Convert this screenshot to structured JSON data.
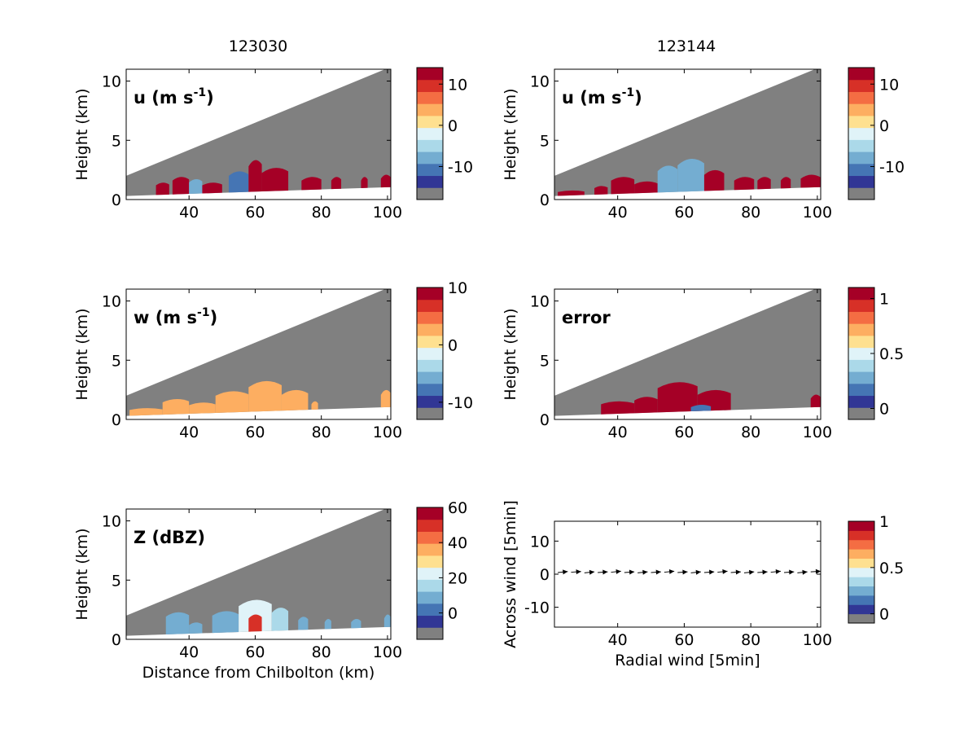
{
  "figure": {
    "column_titles": [
      "123030",
      "123144"
    ],
    "shared_xlabel": "Distance from Chilbolton (km)",
    "shared_ylabel": "Height (km)"
  },
  "palette": {
    "colormap": [
      "#313695",
      "#4575b4",
      "#74add1",
      "#abd9e9",
      "#e0f3f8",
      "#fee090",
      "#fdae61",
      "#f46d43",
      "#d73027",
      "#a50026"
    ],
    "background_grey": "#808080"
  },
  "chart_data": [
    {
      "id": "u-123030",
      "type": "heatmap",
      "panel_label": "u (m s",
      "panel_label_sup": "-1",
      "panel_label_tail": ")",
      "xlim": [
        21,
        101
      ],
      "ylim": [
        0,
        11
      ],
      "xticks": [
        40,
        60,
        80,
        100
      ],
      "yticks": [
        0,
        5,
        10
      ],
      "xlabel": "",
      "ylabel": "Height (km)",
      "colorbar": {
        "vmin": -18,
        "vmax": 14,
        "ticks": [
          10,
          0,
          -10
        ],
        "bottom_grey": true
      },
      "echo_regions": [
        {
          "x": [
            30,
            34
          ],
          "top": 1.5,
          "value": 12
        },
        {
          "x": [
            35,
            40
          ],
          "top": 2.0,
          "value": 12
        },
        {
          "x": [
            40,
            44
          ],
          "top": 1.8,
          "value": -11
        },
        {
          "x": [
            44,
            50
          ],
          "top": 1.5,
          "value": 12
        },
        {
          "x": [
            52,
            58
          ],
          "top": 2.5,
          "value": -12
        },
        {
          "x": [
            58,
            62
          ],
          "top": 3.5,
          "value": 12
        },
        {
          "x": [
            62,
            70
          ],
          "top": 2.8,
          "value": 12
        },
        {
          "x": [
            74,
            80
          ],
          "top": 2.0,
          "value": 12
        },
        {
          "x": [
            83,
            86
          ],
          "top": 2.0,
          "value": 12
        },
        {
          "x": [
            92,
            94
          ],
          "top": 2.0,
          "value": 12
        },
        {
          "x": [
            98,
            101
          ],
          "top": 2.2,
          "value": 12
        }
      ]
    },
    {
      "id": "u-123144",
      "type": "heatmap",
      "panel_label": "u (m s",
      "panel_label_sup": "-1",
      "panel_label_tail": ")",
      "xlim": [
        21,
        101
      ],
      "ylim": [
        0,
        11
      ],
      "xticks": [
        40,
        60,
        80,
        100
      ],
      "yticks": [
        0,
        5,
        10
      ],
      "xlabel": "",
      "ylabel": "Height (km)",
      "colorbar": {
        "vmin": -18,
        "vmax": 14,
        "ticks": [
          10,
          0,
          -10
        ],
        "bottom_grey": true
      },
      "echo_regions": [
        {
          "x": [
            22,
            30
          ],
          "top": 0.8,
          "value": 12
        },
        {
          "x": [
            33,
            37
          ],
          "top": 1.2,
          "value": 12
        },
        {
          "x": [
            38,
            45
          ],
          "top": 2.0,
          "value": 12
        },
        {
          "x": [
            45,
            52
          ],
          "top": 1.6,
          "value": 12
        },
        {
          "x": [
            52,
            58
          ],
          "top": 3.0,
          "value": -11
        },
        {
          "x": [
            58,
            66
          ],
          "top": 3.6,
          "value": -9
        },
        {
          "x": [
            66,
            72
          ],
          "top": 2.6,
          "value": 12
        },
        {
          "x": [
            75,
            81
          ],
          "top": 2.0,
          "value": 12
        },
        {
          "x": [
            82,
            86
          ],
          "top": 2.0,
          "value": 12
        },
        {
          "x": [
            89,
            92
          ],
          "top": 2.0,
          "value": 12
        },
        {
          "x": [
            95,
            101
          ],
          "top": 2.2,
          "value": 12
        }
      ]
    },
    {
      "id": "w-123030",
      "type": "heatmap",
      "panel_label": "w (m s",
      "panel_label_sup": "-1",
      "panel_label_tail": ")",
      "xlim": [
        21,
        101
      ],
      "ylim": [
        0,
        11
      ],
      "xticks": [
        40,
        60,
        80,
        100
      ],
      "yticks": [
        0,
        5,
        10
      ],
      "xlabel": "",
      "ylabel": "Height (km)",
      "colorbar": {
        "vmin": -13,
        "vmax": 10,
        "ticks": [
          10,
          0,
          -10
        ],
        "bottom_grey": true
      },
      "echo_regions": [
        {
          "x": [
            22,
            32
          ],
          "top": 1.0,
          "value": 2
        },
        {
          "x": [
            32,
            40
          ],
          "top": 1.8,
          "value": 2
        },
        {
          "x": [
            40,
            48
          ],
          "top": 1.5,
          "value": 1
        },
        {
          "x": [
            48,
            58
          ],
          "top": 2.5,
          "value": 2
        },
        {
          "x": [
            58,
            68
          ],
          "top": 3.4,
          "value": 2
        },
        {
          "x": [
            68,
            76
          ],
          "top": 2.6,
          "value": 1
        },
        {
          "x": [
            77,
            79
          ],
          "top": 1.6,
          "value": 1
        },
        {
          "x": [
            98,
            101
          ],
          "top": 2.6,
          "value": 2
        }
      ]
    },
    {
      "id": "error-123144",
      "type": "heatmap",
      "panel_label": "error",
      "panel_label_sup": "",
      "panel_label_tail": "",
      "xlim": [
        21,
        101
      ],
      "ylim": [
        0,
        11
      ],
      "xticks": [
        40,
        60,
        80,
        100
      ],
      "yticks": [
        0,
        5,
        10
      ],
      "xlabel": "",
      "ylabel": "Height (km)",
      "colorbar": {
        "vmin": -0.1,
        "vmax": 1.1,
        "ticks": [
          1,
          0.5,
          0
        ],
        "bottom_grey": true
      },
      "echo_regions": [
        {
          "x": [
            35,
            45
          ],
          "top": 1.6,
          "value": 1.05
        },
        {
          "x": [
            45,
            52
          ],
          "top": 2.0,
          "value": 1.05
        },
        {
          "x": [
            52,
            64
          ],
          "top": 3.3,
          "value": 1.05
        },
        {
          "x": [
            64,
            74
          ],
          "top": 2.6,
          "value": 1.05
        },
        {
          "x": [
            62,
            68
          ],
          "top": 1.3,
          "value": 0.1
        },
        {
          "x": [
            98,
            101
          ],
          "top": 2.2,
          "value": 1.05
        }
      ]
    },
    {
      "id": "Z-123030",
      "type": "heatmap",
      "panel_label": "Z (dBZ)",
      "panel_label_sup": "",
      "panel_label_tail": "",
      "xlim": [
        21,
        101
      ],
      "ylim": [
        0,
        11
      ],
      "xticks": [
        40,
        60,
        80,
        100
      ],
      "yticks": [
        0,
        5,
        10
      ],
      "xlabel": "Distance from Chilbolton (km)",
      "ylabel": "Height (km)",
      "colorbar": {
        "vmin": -15,
        "vmax": 60,
        "ticks": [
          60,
          40,
          20,
          0
        ],
        "bottom_grey": true
      },
      "echo_regions": [
        {
          "x": [
            33,
            40
          ],
          "top": 2.4,
          "value": 0
        },
        {
          "x": [
            40,
            44
          ],
          "top": 1.5,
          "value": 5
        },
        {
          "x": [
            47,
            55
          ],
          "top": 2.5,
          "value": 5
        },
        {
          "x": [
            55,
            65
          ],
          "top": 3.5,
          "value": 20
        },
        {
          "x": [
            58,
            62
          ],
          "top": 2.2,
          "value": 45
        },
        {
          "x": [
            65,
            70
          ],
          "top": 2.8,
          "value": 10
        },
        {
          "x": [
            73,
            76
          ],
          "top": 2.0,
          "value": 0
        },
        {
          "x": [
            81,
            83
          ],
          "top": 1.8,
          "value": 0
        },
        {
          "x": [
            89,
            92
          ],
          "top": 1.8,
          "value": 0
        },
        {
          "x": [
            99,
            101
          ],
          "top": 2.2,
          "value": 0
        }
      ]
    },
    {
      "id": "wind-vectors",
      "type": "scatter",
      "xlim": [
        21,
        101
      ],
      "ylim": [
        -16,
        16
      ],
      "xticks": [
        40,
        60,
        80,
        100
      ],
      "yticks": [
        10,
        0,
        -10
      ],
      "xlabel": "Radial wind [5min]",
      "ylabel": "Across wind [5min]",
      "colorbar": {
        "vmin": -0.1,
        "vmax": 1.0,
        "ticks": [
          1,
          0.5,
          0
        ],
        "bottom_grey": true
      },
      "arrows": {
        "x": [
          22,
          26,
          30,
          34,
          38,
          42,
          46,
          50,
          54,
          58,
          62,
          66,
          70,
          74,
          78,
          82,
          86,
          90,
          94,
          98
        ],
        "y": [
          0.5,
          0.6,
          0.4,
          0.5,
          0.6,
          0.5,
          0.4,
          0.5,
          0.6,
          0.5,
          0.4,
          0.5,
          0.6,
          0.5,
          0.4,
          0.5,
          0.6,
          0.5,
          0.4,
          0.7
        ],
        "dx": [
          3,
          3,
          3,
          3,
          3,
          3,
          3,
          3,
          3,
          3,
          3,
          3,
          3,
          3,
          3,
          3,
          3,
          3,
          3,
          3
        ],
        "dy": [
          0.3,
          0.2,
          0.3,
          0.2,
          0.3,
          0.2,
          0.3,
          0.2,
          0.3,
          0.2,
          0.3,
          0.2,
          0.3,
          0.2,
          0.3,
          0.2,
          0.3,
          0.2,
          0.3,
          0.2
        ]
      }
    }
  ]
}
